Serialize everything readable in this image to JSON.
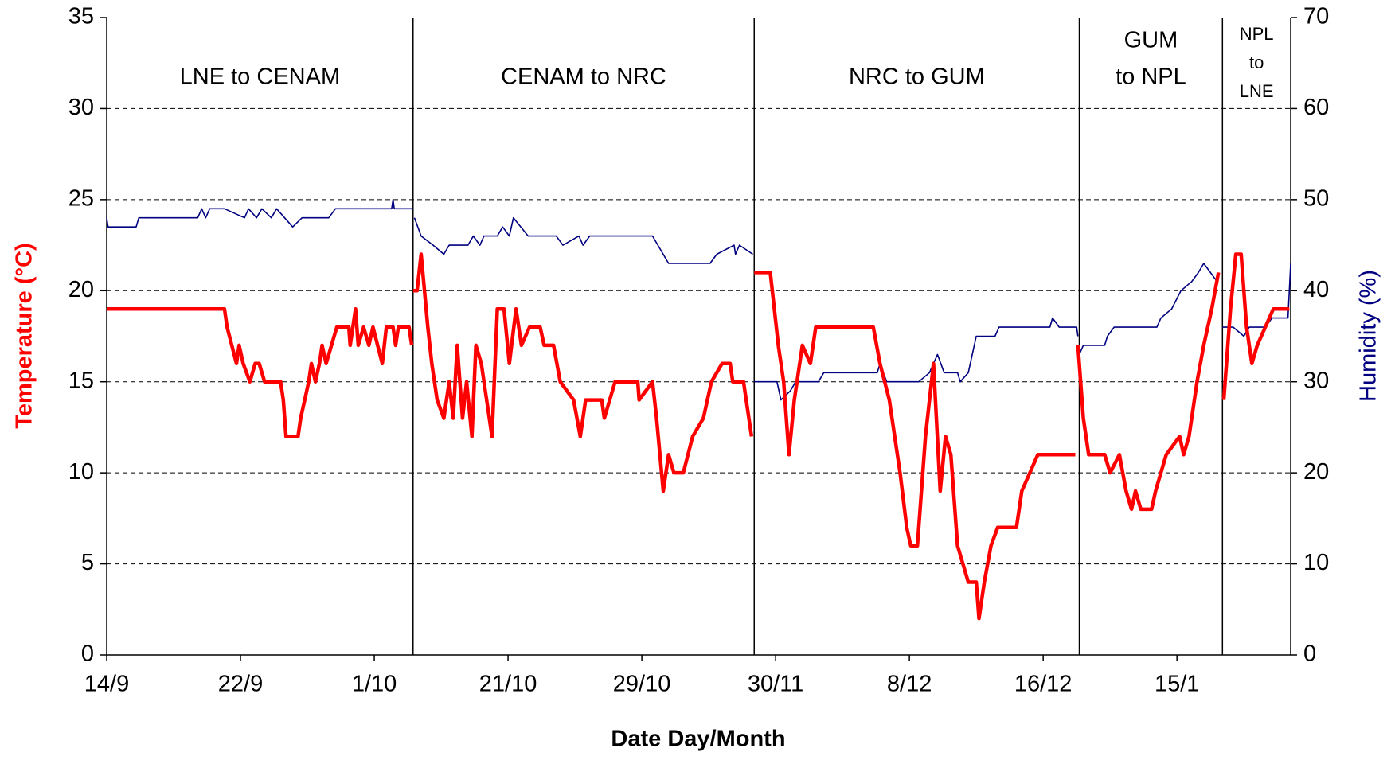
{
  "chart_data": {
    "type": "line",
    "xlabel": "Date Day/Month",
    "ylabel": "Temperature (°C)",
    "y2label": "Humidity (%)",
    "xlim": [
      0,
      88.5
    ],
    "xticks": [
      {
        "value": 0,
        "label": "14/9"
      },
      {
        "value": 10,
        "label": "22/9"
      },
      {
        "value": 20,
        "label": "1/10"
      },
      {
        "value": 30,
        "label": "21/10"
      },
      {
        "value": 40,
        "label": "29/10"
      },
      {
        "value": 50,
        "label": "30/11"
      },
      {
        "value": 60,
        "label": "8/12"
      },
      {
        "value": 70,
        "label": "16/12"
      },
      {
        "value": 80,
        "label": "15/1"
      }
    ],
    "ylim": [
      0,
      35
    ],
    "yticks": [
      0,
      5,
      10,
      15,
      20,
      25,
      30,
      35
    ],
    "y2lim": [
      0,
      70
    ],
    "y2ticks": [
      0,
      10,
      20,
      30,
      40,
      50,
      60,
      70
    ],
    "grid": true,
    "dividers": [
      22.9,
      48.4,
      72.7,
      83.4
    ],
    "annotations": [
      {
        "lines": [
          "LNE to CENAM"
        ]
      },
      {
        "lines": [
          "CENAM to NRC"
        ]
      },
      {
        "lines": [
          "NRC to GUM"
        ]
      },
      {
        "lines": [
          "GUM",
          "to NPL"
        ]
      },
      {
        "lines": [
          "NPL",
          "to",
          "LNE"
        ]
      }
    ],
    "series": [
      {
        "name": "Temperature",
        "color": "#ff0000",
        "axis": "y",
        "x": [
          0,
          8.8,
          9,
          9.7,
          9.9,
          10.2,
          10.7,
          11.1,
          11.4,
          11.8,
          13,
          13.2,
          13.4,
          14.3,
          14.5,
          14.8,
          15.1,
          15.3,
          15.6,
          15.9,
          16.1,
          16.4,
          16.8,
          17.2,
          18.1,
          18.2,
          18.6,
          18.8,
          19.2,
          19.6,
          19.9,
          20.6,
          20.9,
          21.4,
          21.6,
          21.8,
          22.6,
          22.8,
          null,
          22.9,
          23.2,
          23.5,
          24.0,
          24.3,
          24.7,
          25.2,
          25.6,
          25.9,
          26.2,
          26.6,
          26.9,
          27.3,
          27.6,
          28.0,
          28.8,
          29.2,
          29.7,
          30.1,
          30.6,
          31.0,
          31.6,
          32.4,
          32.7,
          33.4,
          33.9,
          34.9,
          35.4,
          35.8,
          37.0,
          37.2,
          38.0,
          39.7,
          39.8,
          40.8,
          41.1,
          41.6,
          42.0,
          42.4,
          43.1,
          43.8,
          44.6,
          45.2,
          46.0,
          46.6,
          46.8,
          47.6,
          48.2,
          null,
          48.4,
          49.6,
          50.2,
          50.6,
          51.0,
          51.4,
          52.0,
          52.6,
          53.0,
          57.3,
          57.8,
          58.5,
          59.3,
          59.8,
          60.1,
          60.6,
          61.2,
          61.8,
          62.3,
          62.7,
          63.1,
          63.6,
          64.4,
          65.0,
          65.2,
          65.6,
          66.1,
          66.6,
          68.0,
          68.4,
          69.0,
          69.6,
          72.4,
          null,
          72.6,
          73.0,
          73.4,
          74.6,
          75.0,
          75.7,
          76.2,
          76.6,
          76.9,
          77.3,
          78.1,
          78.4,
          79.2,
          80.2,
          80.5,
          80.9,
          81.5,
          82.0,
          82.6,
          83.1,
          null,
          83.5,
          84.0,
          84.4,
          84.8,
          85.2,
          85.6,
          86.0,
          86.6,
          87.2,
          88.4
        ],
        "values": [
          19,
          19,
          18,
          16,
          17,
          16,
          15,
          16,
          16,
          15,
          15,
          14,
          12,
          12,
          13,
          14,
          15,
          16,
          15,
          16,
          17,
          16,
          17,
          18,
          18,
          17,
          19,
          17,
          18,
          17,
          18,
          16,
          18,
          18,
          17,
          18,
          18,
          17,
          null,
          20,
          20,
          22,
          18,
          16,
          14,
          13,
          15,
          13,
          17,
          13,
          15,
          12,
          17,
          16,
          12,
          19,
          19,
          16,
          19,
          17,
          18,
          18,
          17,
          17,
          15,
          14,
          12,
          14,
          14,
          13,
          15,
          15,
          14,
          15,
          13,
          9,
          11,
          10,
          10,
          12,
          13,
          15,
          16,
          16,
          15,
          15,
          12,
          null,
          21,
          21,
          17,
          15,
          11,
          14,
          17,
          16,
          18,
          18,
          16,
          14,
          10,
          7,
          6,
          6,
          12,
          16,
          9,
          12,
          11,
          6,
          4,
          4,
          2,
          4,
          6,
          7,
          7,
          9,
          10,
          11,
          11,
          null,
          17,
          13,
          11,
          11,
          10,
          11,
          9,
          8,
          9,
          8,
          8,
          9,
          11,
          12,
          11,
          12,
          15,
          17,
          19,
          21,
          null,
          14,
          19,
          22,
          22,
          18,
          16,
          17,
          18,
          19,
          19
        ]
      },
      {
        "name": "Humidity",
        "color": "#000080",
        "axis": "y2",
        "x": [
          0,
          0.1,
          2.2,
          2.4,
          6.8,
          7.1,
          7.4,
          7.7,
          8.8,
          10.3,
          10.6,
          11.2,
          11.6,
          12.3,
          12.7,
          13.9,
          14.6,
          16.6,
          17.1,
          21.3,
          21.4,
          21.5,
          22.9,
          null,
          23.0,
          23.5,
          24.4,
          25.2,
          25.6,
          27.0,
          27.4,
          27.9,
          28.2,
          29.2,
          29.6,
          30.1,
          30.4,
          31.5,
          33.6,
          34.1,
          35.3,
          35.6,
          36.1,
          40.8,
          41.2,
          42.0,
          45.1,
          45.6,
          46.9,
          47.0,
          47.3,
          48.3,
          null,
          48.4,
          50.1,
          50.4,
          51.1,
          51.5,
          53.2,
          53.6,
          57.6,
          57.8,
          58.3,
          60.7,
          61.5,
          62.1,
          62.6,
          63.6,
          63.8,
          64.4,
          65.0,
          66.4,
          66.7,
          70.5,
          70.7,
          71.2,
          72.5,
          72.6,
          null,
          72.7,
          73.0,
          74.6,
          74.8,
          75.3,
          78.5,
          78.8,
          79.6,
          80.3,
          81.1,
          81.6,
          82.0,
          82.5,
          83.0,
          null,
          83.4,
          84.2,
          85.0,
          85.4,
          86.6,
          87.1,
          88.3,
          88.5
        ],
        "values": [
          48,
          47,
          47,
          48,
          48,
          49,
          48,
          49,
          49,
          48,
          49,
          48,
          49,
          48,
          49,
          47,
          48,
          48,
          49,
          49,
          50,
          49,
          49,
          null,
          48,
          46,
          45,
          44,
          45,
          45,
          46,
          45,
          46,
          46,
          47,
          46,
          48,
          46,
          46,
          45,
          46,
          45,
          46,
          46,
          45,
          43,
          43,
          44,
          45,
          44,
          45,
          44,
          null,
          30,
          30,
          28,
          29,
          30,
          30,
          31,
          31,
          32,
          30,
          30,
          31,
          33,
          31,
          31,
          30,
          31,
          35,
          35,
          36,
          36,
          37,
          36,
          36,
          35,
          null,
          33,
          34,
          34,
          35,
          36,
          36,
          37,
          38,
          40,
          41,
          42,
          43,
          42,
          41,
          null,
          36,
          36,
          35,
          36,
          36,
          37,
          37,
          43
        ]
      }
    ]
  }
}
